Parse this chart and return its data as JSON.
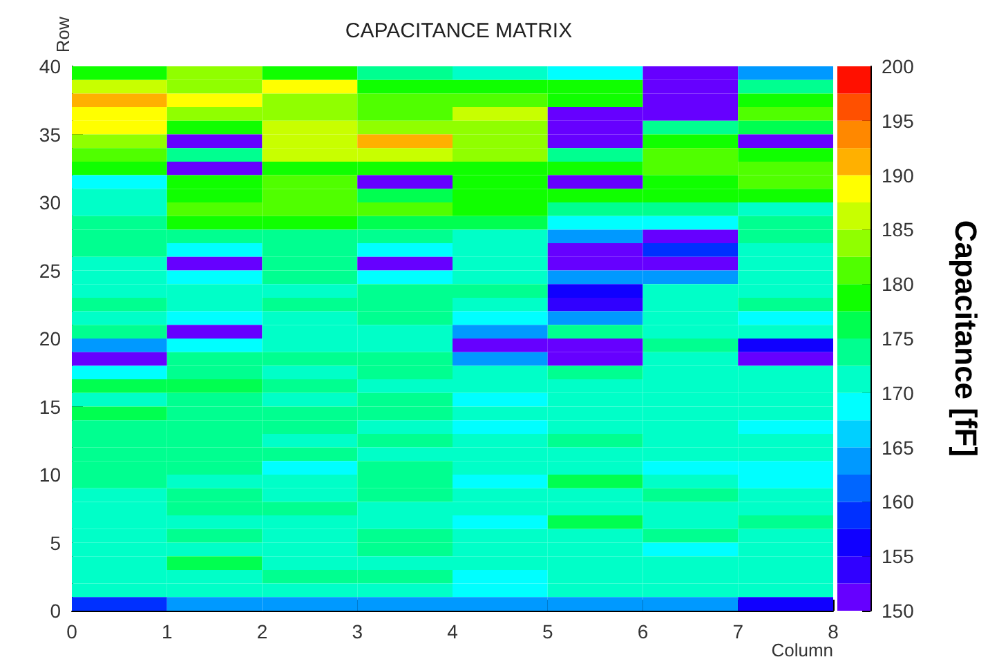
{
  "chart_data": {
    "type": "heatmap",
    "title": "CAPACITANCE MATRIX",
    "xlabel": "Column",
    "ylabel": "Row",
    "clabel": "Capacitance [fF]",
    "xlim": [
      0,
      8
    ],
    "xticks": [
      0,
      1,
      2,
      3,
      4,
      5,
      6,
      7,
      8
    ],
    "ylim": [
      0,
      40
    ],
    "yticks": [
      0,
      5,
      10,
      15,
      20,
      25,
      30,
      35,
      40
    ],
    "clim": [
      150,
      200
    ],
    "cticks": [
      150,
      155,
      160,
      165,
      170,
      175,
      180,
      185,
      190,
      195,
      200
    ],
    "cells": [
      [
        179,
        184,
        179,
        174,
        171,
        169,
        151,
        164
      ],
      [
        186,
        184,
        189,
        179,
        179,
        179,
        151,
        174
      ],
      [
        191,
        189,
        184,
        181,
        181,
        179,
        151,
        179
      ],
      [
        189,
        184,
        184,
        181,
        186,
        151,
        151,
        181
      ],
      [
        189,
        179,
        186,
        184,
        184,
        151,
        174,
        176
      ],
      [
        184,
        151,
        186,
        191,
        184,
        151,
        179,
        151
      ],
      [
        181,
        174,
        186,
        186,
        184,
        174,
        181,
        179
      ],
      [
        179,
        151,
        179,
        179,
        179,
        179,
        181,
        181
      ],
      [
        169,
        179,
        181,
        151,
        179,
        151,
        179,
        181
      ],
      [
        171,
        179,
        181,
        176,
        179,
        179,
        179,
        179
      ],
      [
        171,
        181,
        181,
        181,
        179,
        174,
        174,
        171
      ],
      [
        174,
        179,
        179,
        176,
        176,
        169,
        169,
        174
      ],
      [
        174,
        174,
        174,
        174,
        171,
        164,
        151,
        174
      ],
      [
        174,
        169,
        174,
        169,
        171,
        151,
        159,
        171
      ],
      [
        171,
        151,
        174,
        151,
        171,
        151,
        151,
        171
      ],
      [
        171,
        169,
        174,
        169,
        171,
        164,
        164,
        171
      ],
      [
        171,
        171,
        171,
        174,
        174,
        156,
        171,
        171
      ],
      [
        174,
        171,
        174,
        174,
        171,
        154,
        171,
        174
      ],
      [
        171,
        169,
        171,
        174,
        169,
        164,
        171,
        169
      ],
      [
        174,
        151,
        171,
        171,
        164,
        174,
        171,
        171
      ],
      [
        164,
        169,
        171,
        171,
        151,
        151,
        174,
        156
      ],
      [
        151,
        174,
        174,
        174,
        164,
        151,
        171,
        151
      ],
      [
        169,
        174,
        171,
        174,
        171,
        174,
        171,
        171
      ],
      [
        176,
        176,
        174,
        171,
        171,
        171,
        171,
        171
      ],
      [
        171,
        174,
        171,
        174,
        169,
        171,
        171,
        171
      ],
      [
        176,
        174,
        174,
        174,
        171,
        171,
        171,
        171
      ],
      [
        174,
        174,
        174,
        171,
        169,
        171,
        171,
        169
      ],
      [
        174,
        174,
        171,
        174,
        171,
        174,
        171,
        171
      ],
      [
        174,
        174,
        174,
        171,
        171,
        171,
        171,
        171
      ],
      [
        174,
        174,
        169,
        174,
        171,
        171,
        169,
        169
      ],
      [
        174,
        171,
        171,
        174,
        169,
        176,
        171,
        169
      ],
      [
        171,
        174,
        171,
        174,
        171,
        171,
        174,
        171
      ],
      [
        171,
        174,
        174,
        171,
        171,
        171,
        171,
        171
      ],
      [
        171,
        171,
        171,
        171,
        169,
        176,
        171,
        174
      ],
      [
        171,
        174,
        171,
        174,
        171,
        171,
        174,
        171
      ],
      [
        171,
        171,
        171,
        174,
        171,
        171,
        169,
        171
      ],
      [
        171,
        176,
        171,
        171,
        171,
        171,
        171,
        171
      ],
      [
        171,
        171,
        174,
        174,
        169,
        171,
        171,
        171
      ],
      [
        171,
        171,
        171,
        171,
        169,
        171,
        171,
        171
      ],
      [
        159,
        164,
        164,
        164,
        164,
        164,
        164,
        156
      ]
    ]
  }
}
